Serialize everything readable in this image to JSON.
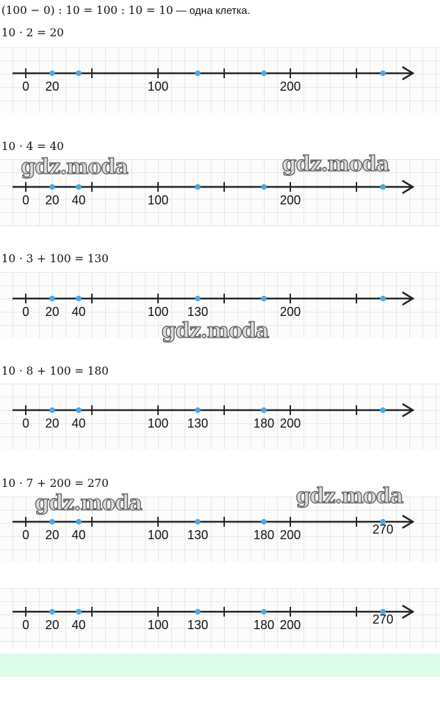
{
  "intro": {
    "math": "(100 − 0) : 10 = 100 : 10 = 10",
    "text": " — одна клетка."
  },
  "panels": [
    {
      "equation": "10 · 2 = 20",
      "labels": [
        0,
        20,
        100,
        200
      ],
      "dots": [
        20,
        40,
        130,
        180,
        270
      ]
    },
    {
      "equation": "10 · 4 = 40",
      "labels": [
        0,
        20,
        40,
        100,
        200
      ],
      "dots": [
        20,
        40,
        130,
        180,
        270
      ]
    },
    {
      "equation": "10 · 3 + 100 = 130",
      "labels": [
        0,
        20,
        40,
        100,
        130,
        200
      ],
      "dots": [
        20,
        40,
        130,
        180,
        270
      ]
    },
    {
      "equation": "10 · 8 + 100 = 180",
      "labels": [
        0,
        20,
        40,
        100,
        130,
        180,
        200
      ],
      "dots": [
        20,
        40,
        130,
        180,
        270
      ]
    },
    {
      "equation": "10 · 7 + 200 = 270",
      "labels": [
        0,
        20,
        40,
        100,
        130,
        180,
        200,
        270
      ],
      "dots": [
        20,
        40,
        130,
        180,
        270
      ]
    },
    {
      "equation": "",
      "labels": [
        0,
        20,
        40,
        100,
        130,
        180,
        200,
        270
      ],
      "dots": [
        20,
        40,
        130,
        180,
        270
      ]
    }
  ],
  "ticks": [
    0,
    50,
    100,
    150,
    200,
    250
  ],
  "watermark": "gdz.moda",
  "colors": {
    "dot": "#4aa8e8",
    "axis": "#222222",
    "grid": "#e6e6e6",
    "footer": "#dcfbe8"
  }
}
